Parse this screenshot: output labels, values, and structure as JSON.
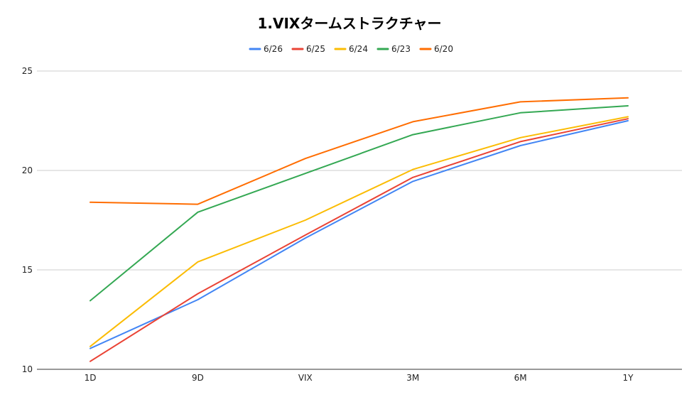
{
  "chart_data": {
    "type": "line",
    "title": "1.VIXタームストラクチャー",
    "xlabel": "",
    "ylabel": "",
    "categories": [
      "1D",
      "9D",
      "VIX",
      "3M",
      "6M",
      "1Y"
    ],
    "ylim": [
      10,
      25
    ],
    "yticks": [
      10,
      15,
      20,
      25
    ],
    "grid": true,
    "legend_position": "top",
    "series": [
      {
        "name": "6/26",
        "color": "#4285f4",
        "values": [
          11.05,
          13.5,
          16.6,
          19.45,
          21.25,
          22.5
        ]
      },
      {
        "name": "6/25",
        "color": "#ea4335",
        "values": [
          10.4,
          13.8,
          16.75,
          19.65,
          21.45,
          22.6
        ]
      },
      {
        "name": "6/24",
        "color": "#fbbc04",
        "values": [
          11.15,
          15.4,
          17.5,
          20.05,
          21.65,
          22.7
        ]
      },
      {
        "name": "6/23",
        "color": "#34a853",
        "values": [
          13.45,
          17.9,
          19.85,
          21.8,
          22.9,
          23.25
        ]
      },
      {
        "name": "6/20",
        "color": "#ff6d01",
        "values": [
          18.4,
          18.3,
          20.6,
          22.45,
          23.45,
          23.65
        ]
      }
    ]
  }
}
